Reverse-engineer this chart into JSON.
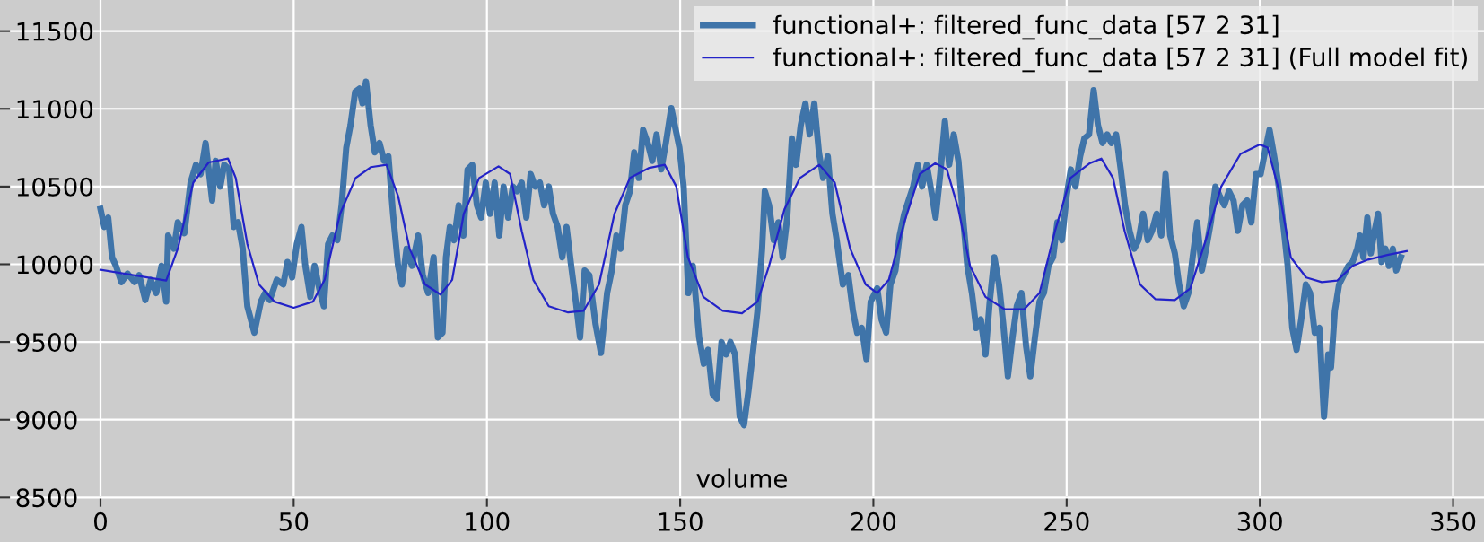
{
  "chart_data": {
    "type": "line",
    "xlabel": "volume",
    "xlim": [
      -26,
      358
    ],
    "ylim": [
      8440,
      11700
    ],
    "xticks": [
      0,
      50,
      100,
      150,
      200,
      250,
      300,
      350
    ],
    "yticks": [
      8500,
      9000,
      9500,
      10000,
      10500,
      11000,
      11500
    ],
    "grid": true,
    "legend": "top right",
    "line_style": "solid",
    "marker": "none",
    "series": [
      {
        "name": "functional+: filtered_func_data [57 2 31]",
        "color": "#3f74a9",
        "x": [
          0,
          1,
          2,
          3,
          4,
          5.4,
          7,
          8.8,
          10,
          11.6,
          13,
          14.4,
          15.8,
          17,
          17.5,
          19,
          20,
          21.7,
          23.3,
          24.7,
          25.9,
          27.2,
          28.9,
          29.8,
          31,
          32,
          33.3,
          34.5,
          35.6,
          36.8,
          38,
          39.8,
          41.5,
          42.6,
          43.8,
          45.6,
          47.3,
          48.4,
          49.6,
          50.8,
          52,
          53,
          54.3,
          55.4,
          56.6,
          57.8,
          58.9,
          60,
          61.3,
          62.4,
          63.6,
          64.7,
          65.9,
          67,
          67.8,
          68.7,
          69.9,
          71,
          72.2,
          73.4,
          74.5,
          75.7,
          77,
          78,
          79.2,
          80.6,
          82.2,
          83.4,
          84.8,
          86.2,
          87.3,
          88.5,
          89.4,
          90.4,
          91.5,
          92.7,
          93.9,
          95,
          96.2,
          97.4,
          98.5,
          99.7,
          100.8,
          102,
          103.2,
          104.3,
          105.5,
          106.7,
          107.8,
          109,
          110.2,
          111.3,
          112.5,
          113.7,
          114.8,
          116,
          117.1,
          118.3,
          119.5,
          120.6,
          121.8,
          123,
          124.1,
          125.3,
          126.5,
          128.1,
          129.5,
          131.1,
          132.3,
          133.5,
          134.6,
          135.8,
          137,
          138.1,
          139.3,
          140.4,
          141.6,
          142.8,
          143.9,
          145.1,
          146.3,
          147.7,
          148.6,
          149.8,
          150.9,
          152.1,
          153.3,
          154.9,
          156.1,
          157.2,
          158.4,
          159.5,
          160.7,
          161.9,
          163,
          164.2,
          165.4,
          166.5,
          167.7,
          168.9,
          170,
          171.2,
          171.9,
          173,
          174.2,
          175.4,
          176.5,
          177.7,
          178.9,
          180,
          181.2,
          182.4,
          183.5,
          184.7,
          185.9,
          187,
          188.2,
          189.4,
          190.5,
          192.1,
          193.5,
          194.7,
          195.8,
          197,
          198.2,
          199.3,
          201,
          202.1,
          203.3,
          204.4,
          205.7,
          206.8,
          208,
          209.1,
          210.3,
          211.5,
          212.6,
          213.8,
          215,
          216.1,
          217.3,
          218.5,
          219.6,
          220.8,
          222,
          223.1,
          224.3,
          225.5,
          226.6,
          227.8,
          229,
          230.1,
          231.3,
          232.5,
          233.6,
          234.8,
          236,
          237.1,
          238.3,
          239.5,
          240.6,
          241.8,
          243,
          244.1,
          245.3,
          246.5,
          247.6,
          248.8,
          250,
          251.1,
          252.3,
          253.5,
          254.6,
          255.8,
          257,
          258.1,
          259.3,
          260.5,
          261.6,
          262.8,
          264,
          265.1,
          266.3,
          267.5,
          268.6,
          269.8,
          271,
          272.1,
          273.3,
          274.5,
          275.6,
          276.8,
          278,
          279.1,
          280.3,
          281.5,
          282.6,
          283.8,
          285,
          286.1,
          287.3,
          288.5,
          289.6,
          290.8,
          292,
          293.2,
          294.3,
          295.5,
          296.7,
          297.8,
          299,
          300.2,
          301.3,
          302.5,
          303.7,
          304.9,
          306,
          307.2,
          308.4,
          309.5,
          310.7,
          311.9,
          313,
          314.2,
          315.4,
          316.6,
          317.7,
          318.4,
          319.4,
          320.5,
          321.7,
          322.9,
          324,
          325.2,
          325.9,
          326.8,
          327.8,
          328.7,
          329.7,
          330.6,
          331.5,
          332.5,
          333.4,
          334.4,
          335.3,
          336.5
        ],
        "values": [
          10355,
          10240,
          10300,
          10045,
          9990,
          9885,
          9940,
          9885,
          9930,
          9770,
          9900,
          9815,
          9990,
          9760,
          10185,
          10100,
          10270,
          10200,
          10525,
          10640,
          10580,
          10780,
          10410,
          10665,
          10500,
          10640,
          10610,
          10240,
          10270,
          10100,
          9730,
          9560,
          9760,
          9815,
          9770,
          9900,
          9870,
          10015,
          9915,
          10130,
          10240,
          9990,
          9790,
          9990,
          9845,
          9730,
          10130,
          10185,
          10155,
          10380,
          10750,
          10895,
          11110,
          11130,
          11035,
          11175,
          10895,
          10720,
          10780,
          10665,
          10695,
          10325,
          9990,
          9870,
          10100,
          9990,
          10185,
          9930,
          9815,
          10045,
          9530,
          9560,
          10045,
          10240,
          10155,
          10380,
          10185,
          10610,
          10640,
          10380,
          10300,
          10525,
          10325,
          10525,
          10185,
          10500,
          10300,
          10500,
          10470,
          10525,
          10300,
          10580,
          10500,
          10525,
          10380,
          10500,
          10325,
          10240,
          10045,
          10240,
          9990,
          9760,
          9530,
          9960,
          9930,
          9615,
          9430,
          9815,
          9960,
          10185,
          10100,
          10380,
          10470,
          10720,
          10555,
          10865,
          10780,
          10665,
          10835,
          10610,
          10780,
          11005,
          10895,
          10750,
          10500,
          9815,
          9990,
          9530,
          9360,
          9450,
          9165,
          9135,
          9500,
          9420,
          9500,
          9420,
          9020,
          8965,
          9190,
          9450,
          9700,
          10100,
          10470,
          10380,
          10155,
          10270,
          10045,
          10300,
          10810,
          10640,
          10895,
          11035,
          10835,
          11035,
          10720,
          10555,
          10695,
          10325,
          10155,
          9870,
          9930,
          9700,
          9560,
          9590,
          9390,
          9760,
          9845,
          9645,
          9560,
          9870,
          9960,
          10185,
          10325,
          10410,
          10500,
          10640,
          10500,
          10640,
          10470,
          10300,
          10580,
          10920,
          10640,
          10835,
          10665,
          10325,
          9990,
          9815,
          9590,
          9645,
          9420,
          9760,
          10045,
          9870,
          9615,
          9280,
          9530,
          9730,
          9815,
          9475,
          9280,
          9530,
          9760,
          9815,
          9990,
          10045,
          10270,
          10155,
          10440,
          10610,
          10500,
          10695,
          10810,
          10835,
          11120,
          10895,
          10780,
          10835,
          10780,
          10835,
          10610,
          10380,
          10215,
          10100,
          10155,
          10325,
          10155,
          10215,
          10325,
          10185,
          10580,
          10185,
          10070,
          9870,
          9730,
          9815,
          10045,
          10270,
          9960,
          10100,
          10270,
          10500,
          10440,
          10380,
          10470,
          10410,
          10215,
          10380,
          10410,
          10270,
          10580,
          10580,
          10720,
          10865,
          10695,
          10500,
          10270,
          9990,
          9590,
          9450,
          9645,
          9870,
          9815,
          9560,
          9590,
          9020,
          9420,
          9335,
          9700,
          9870,
          9930,
          9990,
          10015,
          10100,
          10185,
          10045,
          10300,
          10070,
          10215,
          10325,
          10015,
          10100,
          9990,
          10100,
          9960,
          10045
        ]
      },
      {
        "name": "functional+: filtered_func_data [57 2 31] (Full model fit)",
        "color": "#2323c8",
        "x": [
          0,
          17,
          20,
          24,
          28,
          33,
          35,
          38,
          41,
          45,
          50,
          55,
          58,
          62,
          66,
          70,
          74,
          77,
          80,
          84,
          88,
          91,
          94,
          98,
          103,
          106,
          109,
          112,
          116,
          121,
          125,
          129,
          133,
          137,
          142,
          146,
          149,
          152,
          156,
          161,
          166,
          170,
          173,
          177,
          181,
          186,
          190,
          194,
          198,
          201,
          204,
          208,
          212,
          216,
          219,
          222,
          225,
          229,
          234,
          239,
          243,
          247,
          251,
          256,
          259,
          262,
          265,
          269,
          273,
          278,
          282,
          286,
          290,
          295,
          300,
          302,
          305,
          308,
          312,
          316,
          320,
          324,
          328,
          333,
          338
        ],
        "values": [
          9965,
          9895,
          10100,
          10525,
          10655,
          10680,
          10555,
          10130,
          9870,
          9760,
          9720,
          9760,
          9900,
          10325,
          10555,
          10625,
          10640,
          10440,
          10100,
          9870,
          9805,
          9900,
          10325,
          10555,
          10630,
          10580,
          10215,
          9900,
          9730,
          9690,
          9700,
          9870,
          10325,
          10555,
          10620,
          10640,
          10500,
          10045,
          9790,
          9700,
          9685,
          9760,
          9990,
          10355,
          10555,
          10640,
          10525,
          10100,
          9870,
          9815,
          9900,
          10270,
          10580,
          10650,
          10610,
          10355,
          9990,
          9790,
          9710,
          9710,
          9815,
          10215,
          10555,
          10650,
          10680,
          10555,
          10215,
          9870,
          9775,
          9770,
          9845,
          10155,
          10500,
          10710,
          10770,
          10750,
          10470,
          10045,
          9915,
          9885,
          9895,
          9990,
          10030,
          10060,
          10085
        ]
      }
    ]
  }
}
